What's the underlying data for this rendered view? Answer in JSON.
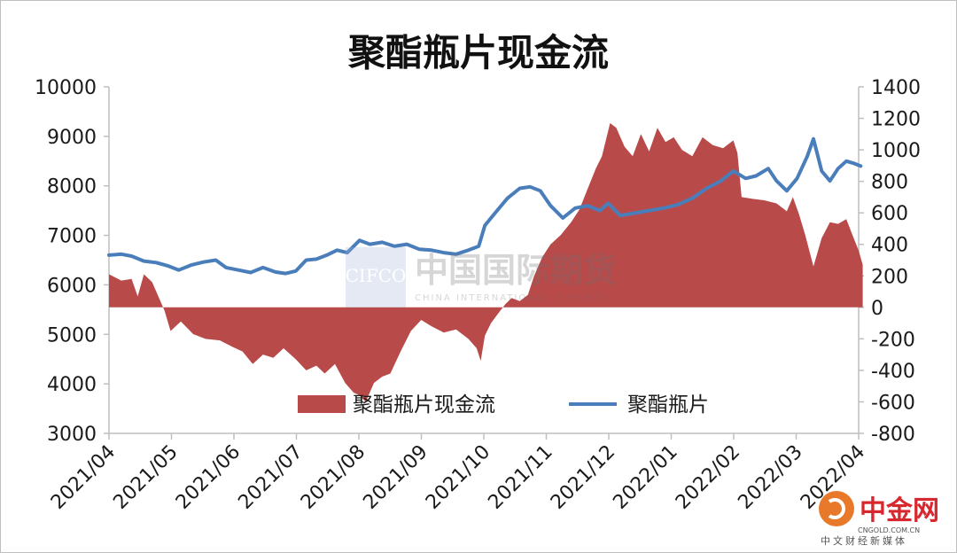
{
  "chart_data": {
    "type": "area+line",
    "title": "聚酯瓶片现金流",
    "x_tick_labels": [
      "2021/04",
      "2021/05",
      "2021/06",
      "2021/07",
      "2021/08",
      "2021/09",
      "2021/10",
      "2021/11",
      "2021/12",
      "2022/01",
      "2022/02",
      "2022/03",
      "2022/04"
    ],
    "left_axis": {
      "ylim": [
        3000,
        10000
      ],
      "ticks": [
        3000,
        4000,
        5000,
        6000,
        7000,
        8000,
        9000,
        10000
      ]
    },
    "right_axis": {
      "ylim": [
        -800,
        1400
      ],
      "ticks": [
        -800,
        -600,
        -400,
        -200,
        0,
        200,
        400,
        600,
        800,
        1000,
        1200,
        1400
      ]
    },
    "legend_position": "bottom-center",
    "series": [
      {
        "name": "聚酯瓶片现金流",
        "kind": "area",
        "axis": "right",
        "color": "#b94a4a",
        "points": [
          [
            "2021-04-01",
            210
          ],
          [
            "2021-04-07",
            170
          ],
          [
            "2021-04-12",
            180
          ],
          [
            "2021-04-15",
            70
          ],
          [
            "2021-04-18",
            210
          ],
          [
            "2021-04-22",
            160
          ],
          [
            "2021-04-28",
            -20
          ],
          [
            "2021-05-01",
            -150
          ],
          [
            "2021-05-06",
            -90
          ],
          [
            "2021-05-12",
            -170
          ],
          [
            "2021-05-18",
            -200
          ],
          [
            "2021-05-25",
            -210
          ],
          [
            "2021-05-31",
            -250
          ],
          [
            "2021-06-05",
            -280
          ],
          [
            "2021-06-10",
            -360
          ],
          [
            "2021-06-15",
            -300
          ],
          [
            "2021-06-20",
            -320
          ],
          [
            "2021-06-25",
            -260
          ],
          [
            "2021-07-01",
            -330
          ],
          [
            "2021-07-06",
            -400
          ],
          [
            "2021-07-11",
            -370
          ],
          [
            "2021-07-15",
            -420
          ],
          [
            "2021-07-20",
            -360
          ],
          [
            "2021-07-25",
            -480
          ],
          [
            "2021-07-29",
            -540
          ],
          [
            "2021-08-01",
            -560
          ],
          [
            "2021-08-04",
            -600
          ],
          [
            "2021-08-08",
            -480
          ],
          [
            "2021-08-12",
            -440
          ],
          [
            "2021-08-16",
            -420
          ],
          [
            "2021-08-21",
            -280
          ],
          [
            "2021-08-26",
            -150
          ],
          [
            "2021-08-31",
            -80
          ],
          [
            "2021-09-05",
            -120
          ],
          [
            "2021-09-11",
            -160
          ],
          [
            "2021-09-17",
            -140
          ],
          [
            "2021-09-23",
            -200
          ],
          [
            "2021-09-27",
            -260
          ],
          [
            "2021-09-29",
            -340
          ],
          [
            "2021-10-01",
            -180
          ],
          [
            "2021-10-04",
            -100
          ],
          [
            "2021-10-08",
            -30
          ],
          [
            "2021-10-11",
            20
          ],
          [
            "2021-10-14",
            60
          ],
          [
            "2021-10-18",
            40
          ],
          [
            "2021-10-22",
            80
          ],
          [
            "2021-10-25",
            200
          ],
          [
            "2021-10-29",
            320
          ],
          [
            "2021-11-02",
            400
          ],
          [
            "2021-11-07",
            460
          ],
          [
            "2021-11-12",
            540
          ],
          [
            "2021-11-16",
            620
          ],
          [
            "2021-11-20",
            750
          ],
          [
            "2021-11-24",
            880
          ],
          [
            "2021-11-27",
            960
          ],
          [
            "2021-12-01",
            1170
          ],
          [
            "2021-12-04",
            1140
          ],
          [
            "2021-12-08",
            1020
          ],
          [
            "2021-12-12",
            960
          ],
          [
            "2021-12-16",
            1100
          ],
          [
            "2021-12-20",
            990
          ],
          [
            "2021-12-24",
            1140
          ],
          [
            "2021-12-28",
            1050
          ],
          [
            "2022-01-01",
            1080
          ],
          [
            "2022-01-05",
            1000
          ],
          [
            "2022-01-10",
            960
          ],
          [
            "2022-01-15",
            1080
          ],
          [
            "2022-01-20",
            1030
          ],
          [
            "2022-01-25",
            1010
          ],
          [
            "2022-01-30",
            1060
          ],
          [
            "2022-02-01",
            980
          ],
          [
            "2022-02-03",
            700
          ],
          [
            "2022-02-08",
            690
          ],
          [
            "2022-02-14",
            680
          ],
          [
            "2022-02-20",
            660
          ],
          [
            "2022-02-25",
            610
          ],
          [
            "2022-02-28",
            700
          ],
          [
            "2022-03-03",
            590
          ],
          [
            "2022-03-06",
            460
          ],
          [
            "2022-03-10",
            260
          ],
          [
            "2022-03-14",
            440
          ],
          [
            "2022-03-18",
            540
          ],
          [
            "2022-03-22",
            530
          ],
          [
            "2022-03-26",
            560
          ],
          [
            "2022-03-29",
            460
          ],
          [
            "2022-04-01",
            360
          ],
          [
            "2022-04-03",
            270
          ]
        ]
      },
      {
        "name": "聚酯瓶片",
        "kind": "line",
        "axis": "left",
        "color": "#4a7ebb",
        "points": [
          [
            "2021-04-01",
            6600
          ],
          [
            "2021-04-07",
            6620
          ],
          [
            "2021-04-12",
            6580
          ],
          [
            "2021-04-18",
            6480
          ],
          [
            "2021-04-24",
            6450
          ],
          [
            "2021-04-30",
            6380
          ],
          [
            "2021-05-05",
            6300
          ],
          [
            "2021-05-11",
            6400
          ],
          [
            "2021-05-17",
            6460
          ],
          [
            "2021-05-23",
            6500
          ],
          [
            "2021-05-28",
            6350
          ],
          [
            "2021-06-03",
            6300
          ],
          [
            "2021-06-09",
            6250
          ],
          [
            "2021-06-15",
            6350
          ],
          [
            "2021-06-21",
            6260
          ],
          [
            "2021-06-26",
            6230
          ],
          [
            "2021-07-01",
            6280
          ],
          [
            "2021-07-06",
            6500
          ],
          [
            "2021-07-11",
            6520
          ],
          [
            "2021-07-16",
            6600
          ],
          [
            "2021-07-21",
            6700
          ],
          [
            "2021-07-26",
            6650
          ],
          [
            "2021-08-01",
            6900
          ],
          [
            "2021-08-06",
            6820
          ],
          [
            "2021-08-12",
            6860
          ],
          [
            "2021-08-18",
            6780
          ],
          [
            "2021-08-24",
            6820
          ],
          [
            "2021-08-30",
            6720
          ],
          [
            "2021-09-05",
            6700
          ],
          [
            "2021-09-11",
            6650
          ],
          [
            "2021-09-17",
            6620
          ],
          [
            "2021-09-23",
            6700
          ],
          [
            "2021-09-28",
            6780
          ],
          [
            "2021-10-01",
            7200
          ],
          [
            "2021-10-06",
            7450
          ],
          [
            "2021-10-12",
            7750
          ],
          [
            "2021-10-18",
            7950
          ],
          [
            "2021-10-23",
            7980
          ],
          [
            "2021-10-28",
            7900
          ],
          [
            "2021-11-02",
            7600
          ],
          [
            "2021-11-08",
            7350
          ],
          [
            "2021-11-14",
            7550
          ],
          [
            "2021-11-20",
            7600
          ],
          [
            "2021-11-26",
            7500
          ],
          [
            "2021-11-30",
            7650
          ],
          [
            "2021-12-06",
            7400
          ],
          [
            "2021-12-13",
            7450
          ],
          [
            "2021-12-20",
            7500
          ],
          [
            "2021-12-27",
            7550
          ],
          [
            "2022-01-03",
            7620
          ],
          [
            "2022-01-10",
            7750
          ],
          [
            "2022-01-17",
            7950
          ],
          [
            "2022-01-24",
            8100
          ],
          [
            "2022-01-30",
            8300
          ],
          [
            "2022-02-05",
            8150
          ],
          [
            "2022-02-10",
            8200
          ],
          [
            "2022-02-16",
            8350
          ],
          [
            "2022-02-20",
            8100
          ],
          [
            "2022-02-25",
            7900
          ],
          [
            "2022-03-02",
            8150
          ],
          [
            "2022-03-07",
            8600
          ],
          [
            "2022-03-10",
            8950
          ],
          [
            "2022-03-14",
            8300
          ],
          [
            "2022-03-18",
            8100
          ],
          [
            "2022-03-22",
            8350
          ],
          [
            "2022-03-26",
            8500
          ],
          [
            "2022-03-30",
            8450
          ],
          [
            "2022-04-02",
            8400
          ]
        ]
      }
    ]
  },
  "watermark": {
    "cn": "中国国际期货",
    "latin": "CIFCO",
    "sub": "CHINA INTERNATIONAL FUTURES"
  },
  "corner_logo": {
    "name": "中金网",
    "domain": "CNGOLD.COM.CN",
    "tagline": "中文财经新媒体"
  }
}
